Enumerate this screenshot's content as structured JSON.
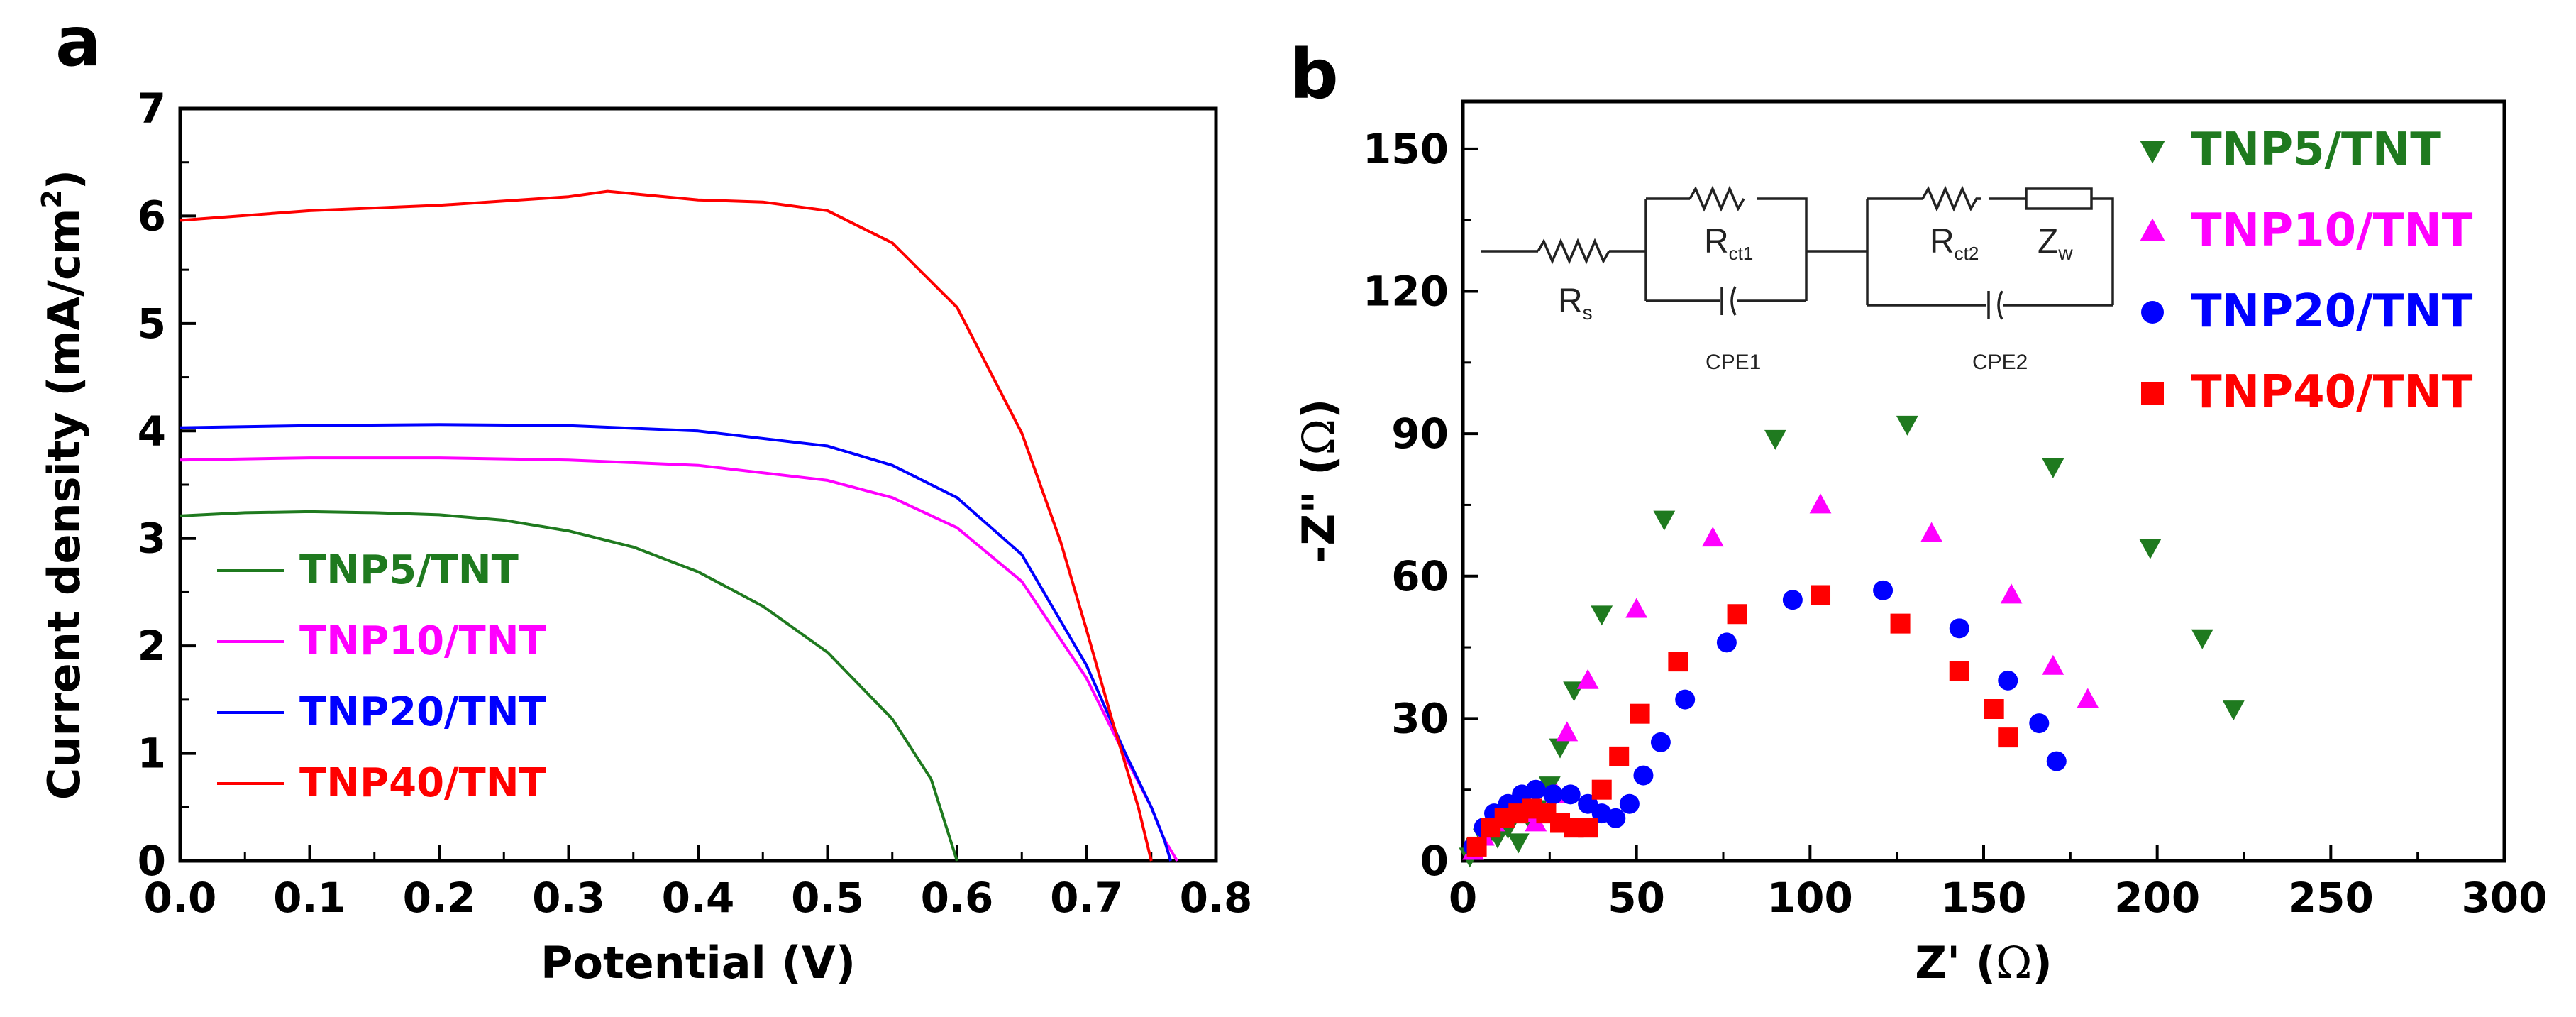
{
  "panel_a": {
    "letter": "a"
  },
  "panel_b": {
    "letter": "b",
    "circuit_labels": {
      "rs": "R",
      "rs_sub": "s",
      "rct1": "R",
      "rct1_sub": "ct1",
      "rct2": "R",
      "rct2_sub": "ct2",
      "zw": "Z",
      "zw_sub": "w",
      "cpe1": "CPE1",
      "cpe2": "CPE2"
    }
  },
  "chart_data": [
    {
      "type": "line",
      "panel": "a",
      "title": "",
      "xlabel": "Potential (V)",
      "ylabel": "Current density (mA/cm²)",
      "ylabel_parts": {
        "main": "Current density (mA/cm",
        "sup": "2",
        "end": ")"
      },
      "xlim": [
        0.0,
        0.8
      ],
      "ylim": [
        0,
        7
      ],
      "xticks": [
        "0.0",
        "0.1",
        "0.2",
        "0.3",
        "0.4",
        "0.5",
        "0.6",
        "0.7",
        "0.8"
      ],
      "yticks": [
        "0",
        "1",
        "2",
        "3",
        "4",
        "5",
        "6",
        "7"
      ],
      "legend_position": "bottom-left",
      "series": [
        {
          "name": "TNP5/TNT",
          "color": "#1f7a1f",
          "x": [
            0.0,
            0.05,
            0.1,
            0.15,
            0.2,
            0.25,
            0.3,
            0.35,
            0.4,
            0.45,
            0.5,
            0.55,
            0.58,
            0.6
          ],
          "y": [
            3.21,
            3.24,
            3.25,
            3.24,
            3.22,
            3.17,
            3.07,
            2.92,
            2.69,
            2.37,
            1.94,
            1.32,
            0.76,
            0.0
          ]
        },
        {
          "name": "TNP10/TNT",
          "color": "#ff00ff",
          "x": [
            0.0,
            0.1,
            0.2,
            0.3,
            0.4,
            0.5,
            0.55,
            0.6,
            0.65,
            0.7,
            0.73,
            0.75,
            0.76,
            0.77
          ],
          "y": [
            3.73,
            3.75,
            3.75,
            3.73,
            3.68,
            3.54,
            3.38,
            3.1,
            2.6,
            1.7,
            0.97,
            0.5,
            0.2,
            0.0
          ]
        },
        {
          "name": "TNP20/TNT",
          "color": "#0000ff",
          "x": [
            0.0,
            0.1,
            0.2,
            0.3,
            0.4,
            0.5,
            0.55,
            0.6,
            0.65,
            0.7,
            0.73,
            0.75,
            0.76,
            0.765
          ],
          "y": [
            4.03,
            4.05,
            4.06,
            4.05,
            4.0,
            3.86,
            3.68,
            3.38,
            2.85,
            1.82,
            1.0,
            0.5,
            0.2,
            0.0
          ]
        },
        {
          "name": "TNP40/TNT",
          "color": "#ff0000",
          "x": [
            0.0,
            0.1,
            0.2,
            0.3,
            0.33,
            0.4,
            0.45,
            0.5,
            0.55,
            0.6,
            0.65,
            0.68,
            0.7,
            0.72,
            0.74,
            0.75
          ],
          "y": [
            5.96,
            6.05,
            6.1,
            6.18,
            6.23,
            6.15,
            6.13,
            6.05,
            5.75,
            5.15,
            3.98,
            2.97,
            2.15,
            1.3,
            0.5,
            0.0
          ]
        }
      ]
    },
    {
      "type": "scatter",
      "panel": "b",
      "title": "",
      "xlabel": "Z' (Ω)",
      "xlabel_parts": {
        "main": "Z' (",
        "omega": "Ω",
        "end": ")"
      },
      "ylabel": "-Z'' (Ω)",
      "ylabel_parts": {
        "main": "-Z\" (",
        "omega": "Ω",
        "end": ")"
      },
      "xlim": [
        0,
        300
      ],
      "ylim": [
        0,
        160
      ],
      "xticks": [
        "0",
        "50",
        "100",
        "150",
        "200",
        "250",
        "300"
      ],
      "yticks": [
        "0",
        "30",
        "60",
        "90",
        "120",
        "150"
      ],
      "legend_position": "top-right",
      "series": [
        {
          "name": "TNP5/TNT",
          "color": "#1f7a1f",
          "marker": "triangle-down",
          "x": [
            2,
            4,
            6,
            8,
            10,
            13,
            16,
            19,
            22,
            25,
            28,
            32,
            40,
            58,
            90,
            128,
            170,
            198,
            213,
            222
          ],
          "y": [
            1,
            3,
            5,
            6,
            5,
            7,
            4,
            9,
            11,
            16,
            24,
            36,
            52,
            72,
            89,
            92,
            83,
            66,
            47,
            32
          ]
        },
        {
          "name": "TNP10/TNT",
          "color": "#ff00ff",
          "marker": "triangle-up",
          "x": [
            3,
            6,
            9,
            12,
            15,
            18,
            21,
            24,
            27,
            30,
            36,
            50,
            72,
            103,
            135,
            158,
            170,
            180
          ],
          "y": [
            2,
            5,
            8,
            10,
            11,
            10,
            8,
            10,
            14,
            27,
            38,
            53,
            68,
            75,
            69,
            56,
            41,
            34
          ]
        },
        {
          "name": "TNP20/TNT",
          "color": "#0000ff",
          "marker": "circle",
          "x": [
            3,
            6,
            9,
            13,
            17,
            21,
            26,
            31,
            36,
            40,
            44,
            48,
            52,
            57,
            64,
            76,
            95,
            121,
            143,
            157,
            166,
            171
          ],
          "y": [
            3,
            7,
            10,
            12,
            14,
            15,
            14,
            14,
            12,
            10,
            9,
            12,
            18,
            25,
            34,
            46,
            55,
            57,
            49,
            38,
            29,
            21
          ]
        },
        {
          "name": "TNP40/TNT",
          "color": "#ff0000",
          "marker": "square",
          "x": [
            4,
            8,
            12,
            16,
            20,
            24,
            28,
            32,
            36,
            40,
            45,
            51,
            62,
            79,
            103,
            126,
            143,
            153,
            157
          ],
          "y": [
            3,
            7,
            9,
            10,
            11,
            10,
            8,
            7,
            7,
            15,
            22,
            31,
            42,
            52,
            56,
            50,
            40,
            32,
            26
          ]
        }
      ]
    }
  ]
}
